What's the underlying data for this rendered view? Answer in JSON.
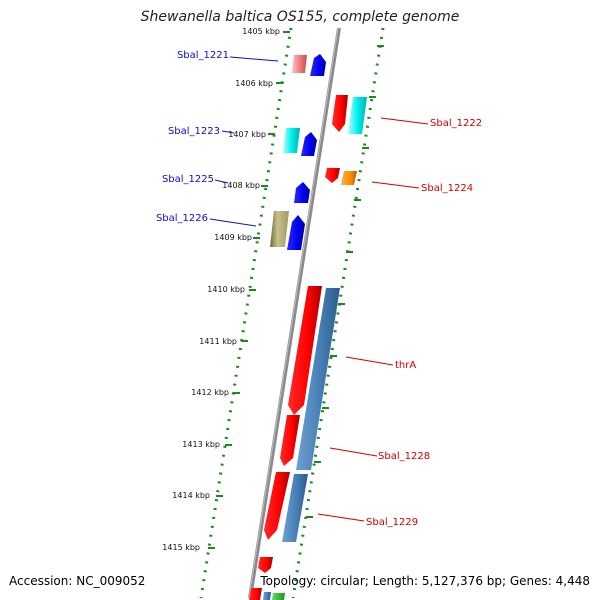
{
  "title": "Shewanella baltica OS155, complete genome",
  "accession": "Accession: NC_009052",
  "stats": "Topology: circular; Length: 5,127,376 bp; Genes: 4,448",
  "colors": {
    "reverse_strand_label": "#0a10c8",
    "forward_strand_label": "#d00000",
    "backbone": "#8a8a8a",
    "dotted_guide": "#1a8a1a"
  },
  "ticks": [
    {
      "label": "1405 kbp"
    },
    {
      "label": "1406 kbp"
    },
    {
      "label": "1407 kbp"
    },
    {
      "label": "1408 kbp"
    },
    {
      "label": "1409 kbp"
    },
    {
      "label": "1410 kbp"
    },
    {
      "label": "1411 kbp"
    },
    {
      "label": "1412 kbp"
    },
    {
      "label": "1413 kbp"
    },
    {
      "label": "1414 kbp"
    },
    {
      "label": "1415 kbp"
    }
  ],
  "genes_left": [
    {
      "name": "Sbal_1221"
    },
    {
      "name": "Sbal_1223"
    },
    {
      "name": "Sbal_1225"
    },
    {
      "name": "Sbal_1226"
    }
  ],
  "genes_right": [
    {
      "name": "Sbal_1222"
    },
    {
      "name": "Sbal_1224"
    },
    {
      "name": "thrA"
    },
    {
      "name": "Sbal_1228"
    },
    {
      "name": "Sbal_1229"
    }
  ]
}
